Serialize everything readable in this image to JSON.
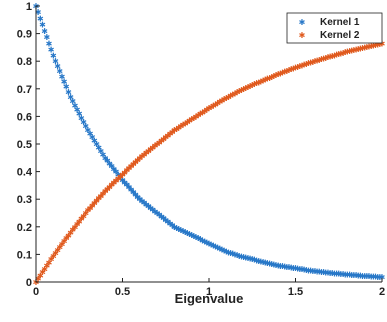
{
  "chart_data": {
    "type": "scatter",
    "xlabel": "Eigenvalue",
    "ylabel": "",
    "xlim": [
      0,
      2
    ],
    "ylim": [
      0,
      1
    ],
    "xticks": [
      "0",
      "0.5",
      "1",
      "1.5",
      "2"
    ],
    "yticks": [
      "0",
      "0.1",
      "0.2",
      "0.3",
      "0.4",
      "0.5",
      "0.6",
      "0.7",
      "0.8",
      "0.9",
      "1"
    ],
    "grid": false,
    "legend_position": "top-right",
    "marker": "*",
    "series": [
      {
        "name": "Kernel 1",
        "color": "#2878c8",
        "x": [
          0,
          0.1,
          0.2,
          0.3,
          0.4,
          0.5,
          0.6,
          0.7,
          0.8,
          0.9,
          1.0,
          1.1,
          1.2,
          1.3,
          1.4,
          1.5,
          1.6,
          1.7,
          1.8,
          1.9,
          2.0
        ],
        "values": [
          1.0,
          0.82,
          0.67,
          0.55,
          0.45,
          0.37,
          0.3,
          0.25,
          0.2,
          0.17,
          0.14,
          0.11,
          0.09,
          0.075,
          0.06,
          0.05,
          0.04,
          0.033,
          0.027,
          0.022,
          0.018
        ]
      },
      {
        "name": "Kernel 2",
        "color": "#e05a1e",
        "x": [
          0,
          0.1,
          0.2,
          0.3,
          0.4,
          0.5,
          0.6,
          0.7,
          0.8,
          0.9,
          1.0,
          1.1,
          1.2,
          1.3,
          1.4,
          1.5,
          1.6,
          1.7,
          1.8,
          1.9,
          2.0
        ],
        "values": [
          0.0,
          0.095,
          0.18,
          0.26,
          0.33,
          0.39,
          0.45,
          0.5,
          0.55,
          0.59,
          0.63,
          0.667,
          0.7,
          0.727,
          0.753,
          0.777,
          0.798,
          0.817,
          0.835,
          0.85,
          0.865
        ]
      }
    ]
  }
}
